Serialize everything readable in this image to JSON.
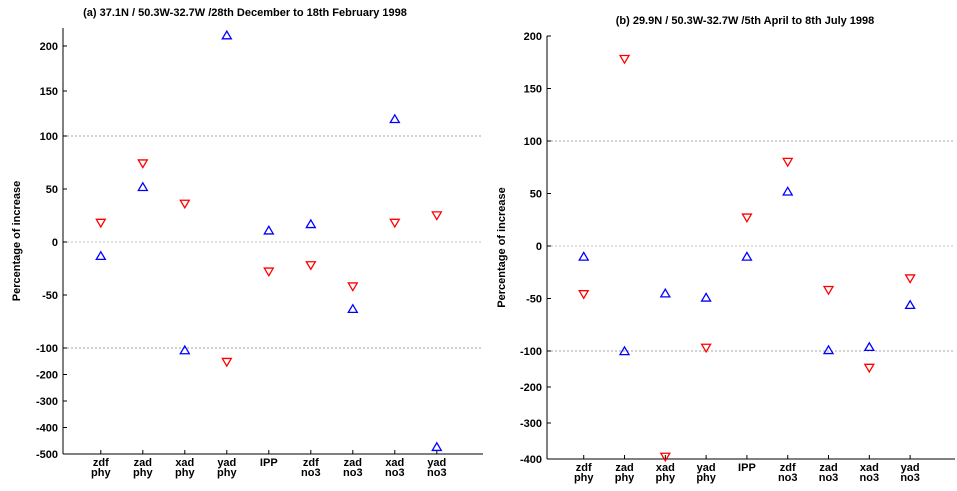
{
  "chart_data": [
    {
      "type": "scatter",
      "title": "(a) 37.1N / 50.3W-32.7W /28th December to 18th February 1998",
      "y_label": "Percentage of increase",
      "categories": [
        "zdf phy",
        "zad phy",
        "xad phy",
        "yad phy",
        "IPP",
        "zdf no3",
        "zad no3",
        "xad no3",
        "yad no3"
      ],
      "series": [
        {
          "color": "#0000ff",
          "marker": "triangle-up",
          "values": [
            -13,
            52,
            -108,
            212,
            11,
            17,
            -63,
            119,
            -473
          ]
        },
        {
          "color": "#ff0000",
          "marker": "triangle-down",
          "values": [
            18,
            74,
            36,
            -153,
            -28,
            -22,
            -42,
            18,
            25
          ]
        }
      ],
      "ylim": [
        -500,
        220
      ],
      "axis_breaks": [
        -100,
        100
      ],
      "yticks": [
        200,
        150,
        100,
        50,
        0,
        -50,
        -100,
        -200,
        -300,
        -400,
        -500
      ]
    },
    {
      "type": "scatter",
      "title": "(b) 29.9N / 50.3W-32.7W /5th April to 8th July 1998",
      "y_label": "Percentage of increase",
      "categories": [
        "zdf phy",
        "zad phy",
        "xad phy",
        "yad phy",
        "IPP",
        "zdf no3",
        "zad no3",
        "xad no3",
        "yad no3"
      ],
      "series": [
        {
          "color": "#0000ff",
          "marker": "triangle-up",
          "values": [
            -10,
            -100,
            -45,
            -49,
            -10,
            52,
            -99,
            -96,
            -56
          ]
        },
        {
          "color": "#ff0000",
          "marker": "triangle-down",
          "values": [
            -46,
            178,
            -394,
            -97,
            27,
            80,
            -42,
            -147,
            -31
          ]
        }
      ],
      "ylim": [
        -400,
        200
      ],
      "axis_breaks": [
        -100,
        100
      ],
      "yticks": [
        200,
        150,
        100,
        50,
        0,
        -50,
        -100,
        -200,
        -300,
        -400
      ]
    }
  ]
}
